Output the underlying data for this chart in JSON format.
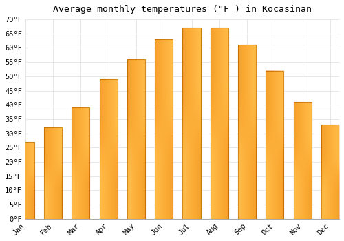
{
  "title": "Average monthly temperatures (°F ) in Kocasinan",
  "months": [
    "Jan",
    "Feb",
    "Mar",
    "Apr",
    "May",
    "Jun",
    "Jul",
    "Aug",
    "Sep",
    "Oct",
    "Nov",
    "Dec"
  ],
  "values": [
    27,
    32,
    39,
    49,
    56,
    63,
    67,
    67,
    61,
    52,
    41,
    33
  ],
  "bar_color_center": "#FFCC44",
  "bar_color_edge": "#F0A010",
  "bar_outline_color": "#C08000",
  "background_color": "#FFFFFF",
  "grid_color": "#DDDDDD",
  "ylim": [
    0,
    70
  ],
  "yticks": [
    0,
    5,
    10,
    15,
    20,
    25,
    30,
    35,
    40,
    45,
    50,
    55,
    60,
    65,
    70
  ],
  "ylabel_suffix": "°F",
  "title_fontsize": 9.5,
  "tick_fontsize": 7.5,
  "font_family": "monospace"
}
